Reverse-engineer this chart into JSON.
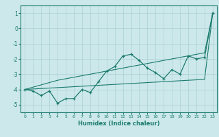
{
  "title": "",
  "xlabel": "Humidex (Indice chaleur)",
  "x": [
    0,
    1,
    2,
    3,
    4,
    5,
    6,
    7,
    8,
    9,
    10,
    11,
    12,
    13,
    14,
    15,
    16,
    17,
    18,
    19,
    20,
    21,
    22,
    23
  ],
  "line1": [
    -4.0,
    -4.1,
    -4.4,
    -4.1,
    -4.9,
    -4.6,
    -4.6,
    -4.0,
    -4.2,
    -3.5,
    -2.8,
    -2.5,
    -1.8,
    -1.7,
    -2.1,
    -2.6,
    -2.9,
    -3.3,
    -2.7,
    -3.0,
    -1.8,
    -2.0,
    -1.9,
    1.0
  ],
  "line2": [
    -4.0,
    -3.85,
    -3.7,
    -3.55,
    -3.4,
    -3.3,
    -3.2,
    -3.1,
    -3.0,
    -2.9,
    -2.8,
    -2.7,
    -2.6,
    -2.5,
    -2.4,
    -2.3,
    -2.2,
    -2.1,
    -2.0,
    -1.9,
    -1.8,
    -1.7,
    -1.6,
    1.0
  ],
  "line3": [
    -4.0,
    -3.97,
    -3.94,
    -3.91,
    -3.88,
    -3.85,
    -3.82,
    -3.79,
    -3.76,
    -3.73,
    -3.7,
    -3.67,
    -3.64,
    -3.61,
    -3.58,
    -3.55,
    -3.52,
    -3.49,
    -3.46,
    -3.43,
    -3.4,
    -3.37,
    -3.34,
    1.0
  ],
  "line_color": "#1a7a6e",
  "bg_color": "#cce8ea",
  "grid_color": "#aad0d4",
  "ylim": [
    -5.5,
    1.5
  ],
  "xlim": [
    -0.5,
    23.5
  ],
  "yticks": [
    1,
    0,
    -1,
    -2,
    -3,
    -4,
    -5
  ],
  "xticks": [
    0,
    1,
    2,
    3,
    4,
    5,
    6,
    7,
    8,
    9,
    10,
    11,
    12,
    13,
    14,
    15,
    16,
    17,
    18,
    19,
    20,
    21,
    22,
    23
  ],
  "xtick_labels": [
    "0",
    "1",
    "2",
    "3",
    "4",
    "5",
    "6",
    "7",
    "8",
    "9",
    "10",
    "11",
    "12",
    "13",
    "14",
    "15",
    "16",
    "17",
    "18",
    "19",
    "20",
    "21",
    "22",
    "23"
  ]
}
